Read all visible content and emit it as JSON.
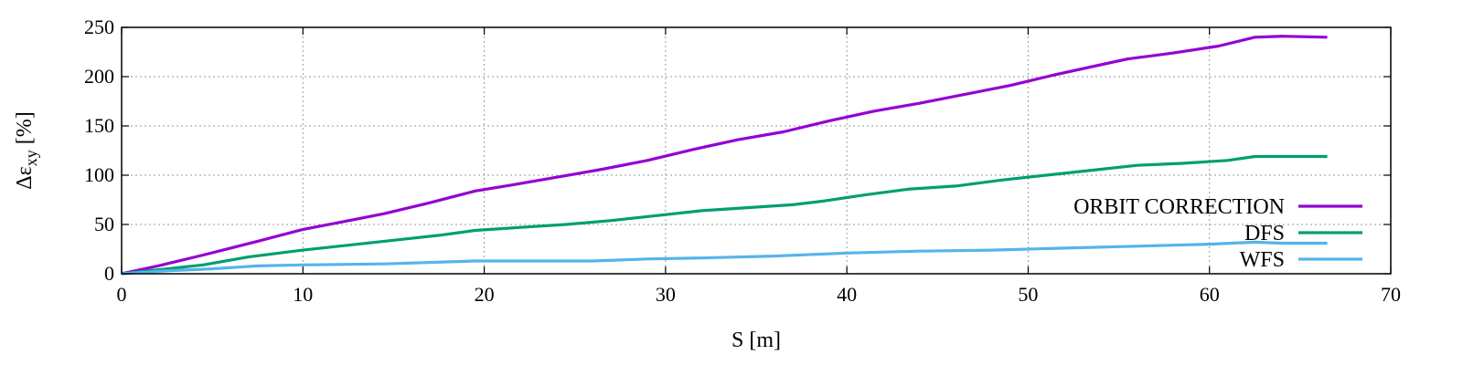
{
  "chart_data": {
    "type": "line",
    "title": "",
    "xlabel": "S [m]",
    "ylabel": "Δε",
    "ylabel_sub": "xy",
    "ylabel_unit": " [%]",
    "xlim": [
      0,
      70
    ],
    "ylim": [
      0,
      250
    ],
    "x_ticks": [
      0,
      10,
      20,
      30,
      40,
      50,
      60,
      70
    ],
    "y_ticks": [
      0,
      50,
      100,
      150,
      200,
      250
    ],
    "grid": true,
    "legend_position": "bottom-right",
    "series": [
      {
        "name": "ORBIT CORRECTION",
        "color": "#9400d3",
        "points": [
          [
            0,
            0
          ],
          [
            2,
            8
          ],
          [
            4.5,
            19
          ],
          [
            7.5,
            33
          ],
          [
            10,
            45
          ],
          [
            12,
            52
          ],
          [
            14.5,
            61
          ],
          [
            17,
            72
          ],
          [
            19.5,
            84
          ],
          [
            21.5,
            90
          ],
          [
            24,
            98
          ],
          [
            26.5,
            106
          ],
          [
            29,
            115
          ],
          [
            31.5,
            126
          ],
          [
            34,
            136
          ],
          [
            36.5,
            144
          ],
          [
            39,
            155
          ],
          [
            41.5,
            165
          ],
          [
            44,
            173
          ],
          [
            46.5,
            182
          ],
          [
            49,
            191
          ],
          [
            51.5,
            202
          ],
          [
            54,
            212
          ],
          [
            55.5,
            218
          ],
          [
            58,
            224
          ],
          [
            60.5,
            231
          ],
          [
            62.5,
            240
          ],
          [
            64,
            241
          ],
          [
            66.5,
            240
          ]
        ]
      },
      {
        "name": "DFS",
        "color": "#009e73",
        "points": [
          [
            0,
            0
          ],
          [
            2,
            4
          ],
          [
            4.5,
            9
          ],
          [
            7,
            17
          ],
          [
            10,
            24
          ],
          [
            12.5,
            29
          ],
          [
            15,
            34
          ],
          [
            17.5,
            39
          ],
          [
            19.5,
            44
          ],
          [
            22,
            47
          ],
          [
            24.5,
            50
          ],
          [
            27,
            54
          ],
          [
            29.5,
            59
          ],
          [
            32,
            64
          ],
          [
            34.5,
            67
          ],
          [
            37,
            70
          ],
          [
            38.8,
            74
          ],
          [
            41,
            80
          ],
          [
            43.5,
            86
          ],
          [
            46,
            89
          ],
          [
            48.5,
            95
          ],
          [
            51,
            100
          ],
          [
            53.5,
            105
          ],
          [
            56,
            110
          ],
          [
            58.5,
            112
          ],
          [
            61,
            115
          ],
          [
            62.5,
            119
          ],
          [
            64,
            119
          ],
          [
            66.5,
            119
          ]
        ]
      },
      {
        "name": "WFS",
        "color": "#56b4e9",
        "points": [
          [
            0,
            0
          ],
          [
            2.5,
            3
          ],
          [
            5,
            5
          ],
          [
            7.5,
            8
          ],
          [
            10,
            9
          ],
          [
            14.5,
            10
          ],
          [
            19.5,
            13
          ],
          [
            22,
            13
          ],
          [
            24.5,
            13
          ],
          [
            26,
            13
          ],
          [
            29,
            15
          ],
          [
            32,
            16
          ],
          [
            36,
            18
          ],
          [
            40,
            21
          ],
          [
            44,
            23
          ],
          [
            48,
            24
          ],
          [
            52,
            26
          ],
          [
            56,
            28
          ],
          [
            60,
            30
          ],
          [
            62.5,
            32
          ],
          [
            64,
            31
          ],
          [
            66.5,
            31
          ]
        ]
      }
    ]
  }
}
